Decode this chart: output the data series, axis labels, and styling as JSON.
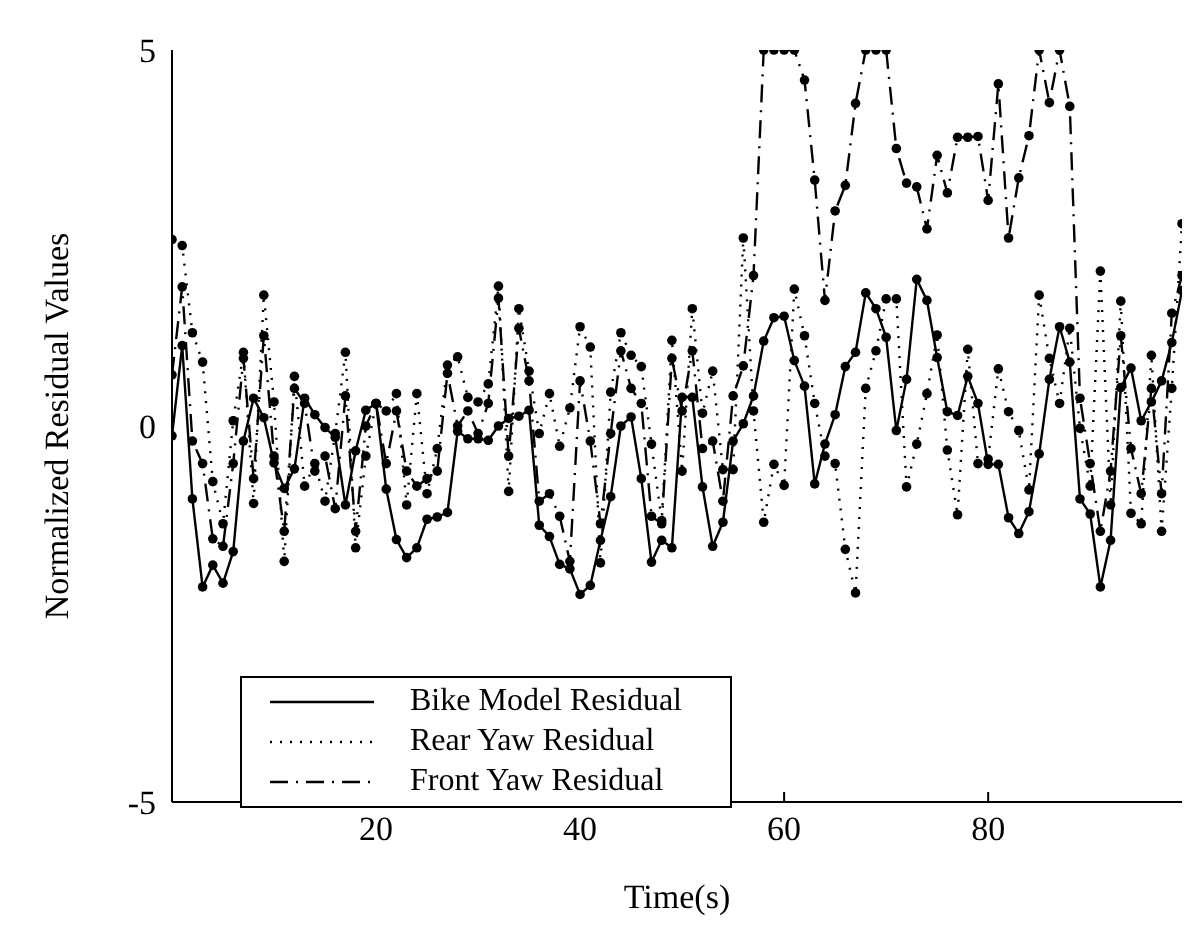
{
  "chart_data": {
    "type": "line",
    "xlabel": "Time(s)",
    "ylabel": "Normalized Residual Values",
    "x": [
      0,
      1,
      2,
      3,
      4,
      5,
      6,
      7,
      8,
      9,
      10,
      11,
      12,
      13,
      14,
      15,
      16,
      17,
      18,
      19,
      20,
      21,
      22,
      23,
      24,
      25,
      26,
      27,
      28,
      29,
      30,
      31,
      32,
      33,
      34,
      35,
      36,
      37,
      38,
      39,
      40,
      41,
      42,
      43,
      44,
      45,
      46,
      47,
      48,
      49,
      50,
      51,
      52,
      53,
      54,
      55,
      56,
      57,
      58,
      59,
      60,
      61,
      62,
      63,
      64,
      65,
      66,
      67,
      68,
      69,
      70,
      71,
      72,
      73,
      74,
      75,
      76,
      77,
      78,
      79,
      80,
      81,
      82,
      83,
      84,
      85,
      86,
      87,
      88,
      89,
      90,
      91,
      92,
      93,
      94,
      95,
      96,
      97,
      98,
      99
    ],
    "xlim": [
      0,
      99
    ],
    "xticks": [
      20,
      40,
      60,
      80
    ],
    "ylim": [
      -5,
      5
    ],
    "yticks": [
      -5,
      0,
      5
    ],
    "grid": false,
    "legend": "bottom left",
    "marker": "circle",
    "series": [
      {
        "name": "Bike Model Residual",
        "color": "#000000",
        "line_style": "solid",
        "values": [
          -0.13,
          1.07,
          -0.97,
          -2.14,
          -1.85,
          -2.09,
          -1.67,
          -0.2,
          0.37,
          0.11,
          -0.49,
          -0.83,
          -0.57,
          0.37,
          0.15,
          -0.02,
          -0.15,
          -1.05,
          -0.33,
          0.21,
          0.3,
          -0.84,
          -1.51,
          -1.75,
          -1.62,
          -1.24,
          -1.21,
          -1.15,
          -0.07,
          -0.17,
          -0.17,
          -0.19,
          0,
          0.1,
          0.13,
          0.21,
          -1.32,
          -1.47,
          -1.84,
          -1.9,
          -2.24,
          -2.12,
          -1.52,
          -0.94,
          0,
          0.12,
          -0.7,
          -1.81,
          -1.52,
          -1.62,
          0.38,
          0.38,
          -0.81,
          -1.6,
          -1.28,
          -0.2,
          0.03,
          0.4,
          1.13,
          1.44,
          1.46,
          0.87,
          0.53,
          -0.77,
          -0.24,
          0.15,
          0.79,
          0.98,
          1.77,
          1.56,
          1.18,
          -0.06,
          0.62,
          1.95,
          1.67,
          0.91,
          0.19,
          0.14,
          0.66,
          0.3,
          -0.51,
          -0.51,
          -1.22,
          -1.43,
          -1.14,
          -0.37,
          0.62,
          1.32,
          0.85,
          -0.97,
          -1.17,
          -2.14,
          -1.52,
          0.51,
          0.77,
          0.07,
          0.32,
          0.6,
          1.11,
          1.8
        ]
      },
      {
        "name": "Rear Yaw Residual",
        "color": "#000000",
        "line_style": "dotted",
        "values": [
          2.48,
          2.4,
          1.24,
          0.85,
          -0.74,
          -1.3,
          0.07,
          0.98,
          -1.03,
          1.74,
          0.32,
          -1.8,
          0.66,
          -0.8,
          -0.5,
          -1.0,
          -0.1,
          0.98,
          -1.62,
          -0.4,
          0.3,
          0.2,
          0.43,
          -1.05,
          0.43,
          -0.9,
          -0.3,
          0.81,
          0.92,
          0.38,
          0.32,
          0.56,
          1.86,
          -0.87,
          1.56,
          0.73,
          -0.1,
          0.43,
          -0.27,
          0.24,
          1.32,
          1.05,
          -1.82,
          0.45,
          1.24,
          0.94,
          0.79,
          -0.24,
          -1.26,
          1.14,
          -0.6,
          1.56,
          0.17,
          0.73,
          -0.58,
          -0.58,
          2.5,
          0.2,
          -1.28,
          -0.51,
          -0.79,
          1.82,
          1.2,
          0.3,
          -0.4,
          -0.5,
          -1.64,
          -2.22,
          0.5,
          1.0,
          1.69,
          1.69,
          -0.81,
          -0.24,
          0.43,
          1.21,
          -0.32,
          -1.18,
          1.02,
          -0.5,
          -0.44,
          0.76,
          0.19,
          -0.06,
          -0.85,
          1.74,
          0.9,
          0.3,
          1.3,
          -0.03,
          -0.8,
          2.06,
          -1.05,
          1.66,
          -1.16,
          -1.3,
          0.94,
          -1.4,
          0.5,
          2.69
        ]
      },
      {
        "name": "Front Yaw Residual",
        "color": "#000000",
        "line_style": "dashed",
        "values": [
          0.68,
          1.85,
          -0.2,
          -0.5,
          -1.5,
          -1.6,
          -0.5,
          0.9,
          -0.7,
          1.2,
          -0.4,
          -1.4,
          0.5,
          0.3,
          -0.6,
          -0.4,
          -1.1,
          0.4,
          -1.4,
          0.0,
          0.3,
          -0.5,
          0.2,
          -0.6,
          -0.8,
          -0.7,
          -0.6,
          0.7,
          0.0,
          0.2,
          -0.1,
          0.3,
          1.7,
          -0.4,
          1.3,
          0.6,
          -1.0,
          -0.9,
          -1.2,
          -1.8,
          0.6,
          -0.2,
          -1.3,
          -0.1,
          1.0,
          0.5,
          0.3,
          -1.2,
          -1.3,
          0.9,
          0.2,
          1.0,
          -0.3,
          -0.2,
          -1.0,
          0.4,
          0.8,
          2.0,
          5,
          5,
          5,
          5,
          4.6,
          3.27,
          1.67,
          2.86,
          3.2,
          4.29,
          5,
          5,
          5,
          3.69,
          3.23,
          3.18,
          2.62,
          3.6,
          3.1,
          3.84,
          3.84,
          3.85,
          3.0,
          4.55,
          2.5,
          3.3,
          3.86,
          5,
          4.3,
          5,
          4.25,
          0.37,
          -0.5,
          -1.4,
          -0.6,
          1.2,
          -0.3,
          -0.9,
          0.5,
          -0.9,
          1.5,
          2.0
        ]
      }
    ]
  }
}
